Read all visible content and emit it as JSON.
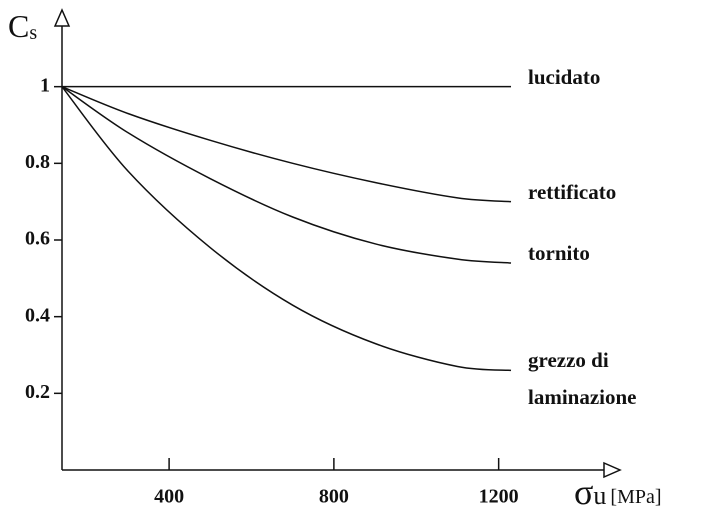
{
  "chart_data": {
    "type": "line",
    "y_label": {
      "main": "C",
      "sub": "s"
    },
    "x_label": {
      "symbol": "σ",
      "sub": "u",
      "unit": "[MPa]"
    },
    "x": [
      140,
      300,
      500,
      700,
      900,
      1100,
      1230
    ],
    "series": [
      {
        "name": "lucidato",
        "color": "#111111",
        "values": [
          1,
          1,
          1,
          1,
          1,
          1,
          1
        ]
      },
      {
        "name": "rettificato",
        "color": "#111111",
        "values": [
          1,
          0.93,
          0.86,
          0.8,
          0.75,
          0.71,
          0.7
        ]
      },
      {
        "name": "tornito",
        "color": "#111111",
        "values": [
          1,
          0.88,
          0.76,
          0.66,
          0.59,
          0.55,
          0.54
        ]
      },
      {
        "name": "grezzo di laminazione",
        "color": "#111111",
        "values": [
          1,
          0.78,
          0.58,
          0.43,
          0.33,
          0.27,
          0.26
        ]
      }
    ],
    "xlim": [
      140,
      1480
    ],
    "ylim": [
      0,
      1.2
    ],
    "xticks": [
      400,
      800,
      1200
    ],
    "yticks": [
      0.2,
      0.4,
      0.6,
      0.8,
      1
    ]
  }
}
